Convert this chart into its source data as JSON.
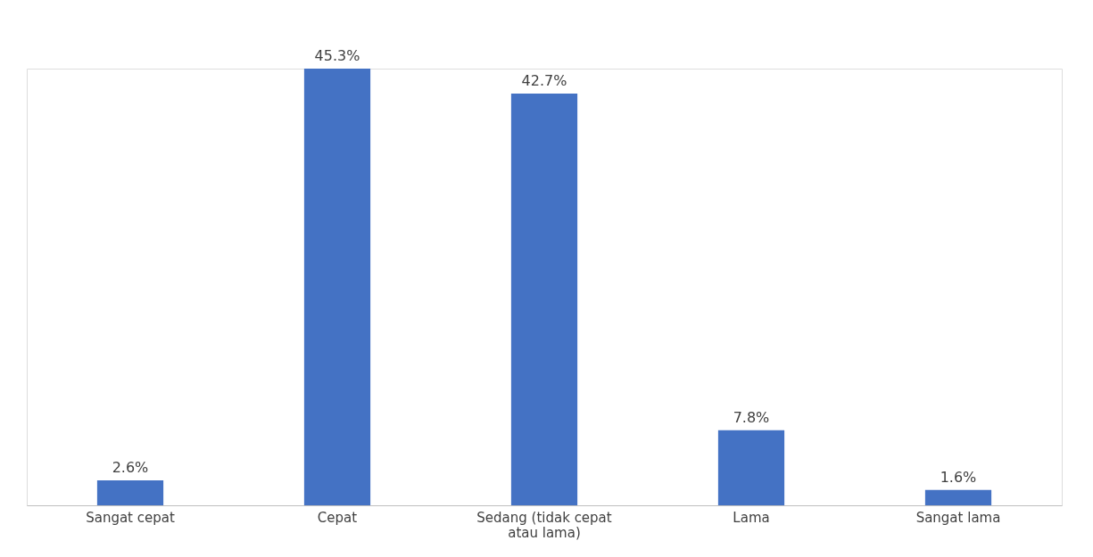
{
  "chart_data": {
    "type": "bar",
    "categories": [
      "Sangat cepat",
      "Cepat",
      "Sedang (tidak cepat\natau lama)",
      "Lama",
      "Sangat lama"
    ],
    "values": [
      2.6,
      45.3,
      42.7,
      7.8,
      1.6
    ],
    "value_labels": [
      "2.6%",
      "45.3%",
      "42.7%",
      "7.8%",
      "1.6%"
    ],
    "color": "#4472c4",
    "grid": false
  }
}
